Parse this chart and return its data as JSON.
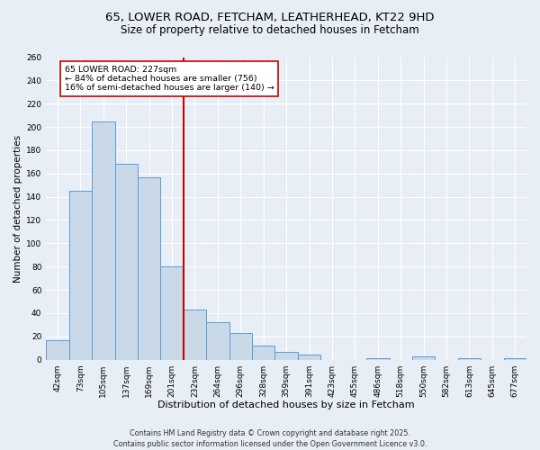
{
  "title1": "65, LOWER ROAD, FETCHAM, LEATHERHEAD, KT22 9HD",
  "title2": "Size of property relative to detached houses in Fetcham",
  "xlabel": "Distribution of detached houses by size in Fetcham",
  "ylabel": "Number of detached properties",
  "categories": [
    "42sqm",
    "73sqm",
    "105sqm",
    "137sqm",
    "169sqm",
    "201sqm",
    "232sqm",
    "264sqm",
    "296sqm",
    "328sqm",
    "359sqm",
    "391sqm",
    "423sqm",
    "455sqm",
    "486sqm",
    "518sqm",
    "550sqm",
    "582sqm",
    "613sqm",
    "645sqm",
    "677sqm"
  ],
  "values": [
    17,
    145,
    205,
    168,
    157,
    80,
    43,
    32,
    23,
    12,
    7,
    4,
    0,
    0,
    1,
    0,
    3,
    0,
    1,
    0,
    1
  ],
  "bar_color": "#c9d9e8",
  "bar_edge_color": "#5b9bd5",
  "highlight_line_index": 6,
  "highlight_line_color": "#cc0000",
  "annotation_text": "65 LOWER ROAD: 227sqm\n← 84% of detached houses are smaller (756)\n16% of semi-detached houses are larger (140) →",
  "annotation_box_color": "#cc0000",
  "annotation_text_color": "#000000",
  "ylim": [
    0,
    260
  ],
  "yticks": [
    0,
    20,
    40,
    60,
    80,
    100,
    120,
    140,
    160,
    180,
    200,
    220,
    240,
    260
  ],
  "background_color": "#e8eef5",
  "plot_bg_color": "#e8eef5",
  "footer_text": "Contains HM Land Registry data © Crown copyright and database right 2025.\nContains public sector information licensed under the Open Government Licence v3.0.",
  "title1_fontsize": 9.5,
  "title2_fontsize": 8.5,
  "xlabel_fontsize": 8,
  "ylabel_fontsize": 7.5,
  "tick_fontsize": 6.5,
  "annotation_fontsize": 6.8,
  "footer_fontsize": 5.8,
  "grid_color": "#ffffff",
  "grid_linewidth": 0.8
}
